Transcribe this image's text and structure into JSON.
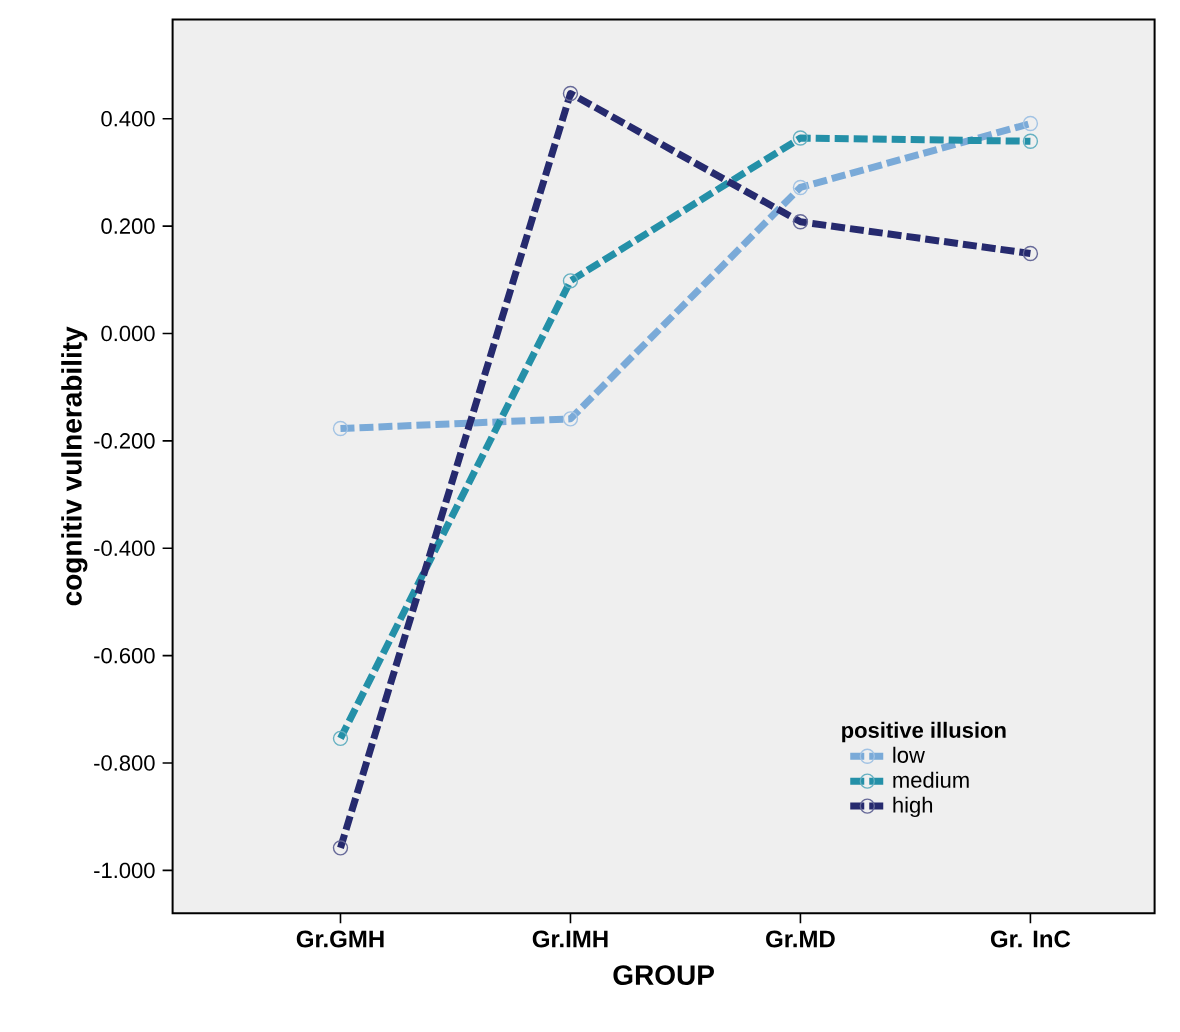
{
  "chart_data": {
    "type": "line",
    "xlabel": "GROUP",
    "ylabel": "cognitiv vulnerability",
    "legend_title": "positive illusion",
    "categories": [
      "Gr.GMH",
      "Gr.IMH",
      "Gr.MD",
      "Gr. InC"
    ],
    "series": [
      {
        "name": "low",
        "color": "#7aaad8",
        "values": [
          -0.177,
          -0.159,
          0.272,
          0.391
        ]
      },
      {
        "name": "medium",
        "color": "#2490a8",
        "values": [
          -0.754,
          0.098,
          0.364,
          0.358
        ]
      },
      {
        "name": "high",
        "color": "#262a6e",
        "values": [
          -0.958,
          0.447,
          0.208,
          0.149
        ]
      }
    ],
    "ylim": [
      -1.08,
      0.585
    ],
    "yticks": [
      {
        "value": -1.0,
        "label": "-1.000"
      },
      {
        "value": -0.8,
        "label": "-0.800"
      },
      {
        "value": -0.6,
        "label": "-0.600"
      },
      {
        "value": -0.4,
        "label": "-0.400"
      },
      {
        "value": -0.2,
        "label": "-0.200"
      },
      {
        "value": 0.0,
        "label": "0.000"
      },
      {
        "value": 0.2,
        "label": "0.200"
      },
      {
        "value": 0.4,
        "label": "0.400"
      }
    ],
    "legend": "bottom right",
    "marker": "circle",
    "line_style": "dashed",
    "grid": false
  }
}
